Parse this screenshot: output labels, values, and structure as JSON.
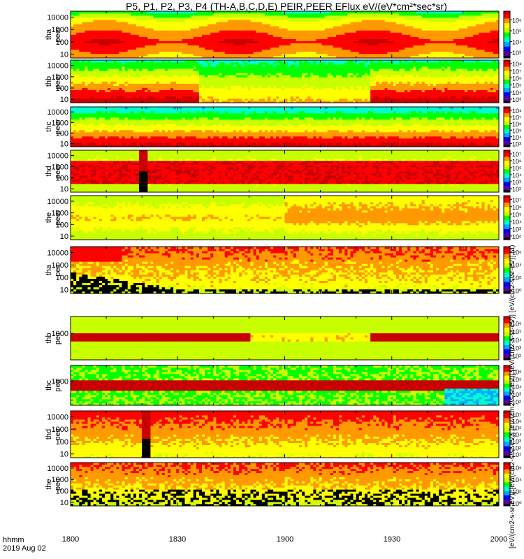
{
  "figure": {
    "title": "P5, P1, P2, P3, P4 (TH-A,B,C,D,E) PEIR,PEER EFlux eV/(eV*cm²*sec*sr)",
    "time_label": "hhmm",
    "date_label": "2019 Aug 02",
    "colorbar_label": "[eV/(cm2-s-sr-eV)] [eV/(cm2-s-sr-eV)] [eV/(cm2-s-sr-eV)] [eV/(cm2-s-sr-eV)] [eV/(cm2-s-sr-eV)] (4)",
    "xticks": [
      "1800",
      "1830",
      "1900",
      "1930",
      "2000"
    ]
  },
  "chart_data": {
    "type": "heatmap",
    "x_range_hhmm": [
      "1800",
      "2000"
    ],
    "y_scale": "log",
    "z_scale": "log",
    "colormap": [
      "#000000",
      "#5a00a0",
      "#0000ff",
      "#00aaff",
      "#00ffd0",
      "#00ff00",
      "#c8ff00",
      "#ffff00",
      "#ff9900",
      "#ff0000",
      "#c80000"
    ],
    "panels": [
      {
        "name": "tha peer",
        "ylabel": [
          "tha",
          "peer"
        ],
        "yticks": [
          "10",
          "100",
          "1000",
          "10000"
        ],
        "ylim": [
          5,
          30000
        ],
        "cbar_ticks": [
          "10⁶",
          "10⁵",
          "10⁴",
          "10³"
        ],
        "cbar_range_exp": [
          2.5,
          6.8
        ]
      },
      {
        "name": "thb peer",
        "ylabel": [
          "thb",
          "peer"
        ],
        "yticks": [
          "10",
          "100",
          "1000",
          "10000"
        ],
        "ylim": [
          5,
          30000
        ],
        "cbar_ticks": [
          "10⁸",
          "10⁷",
          "10⁶",
          "10⁵",
          "10⁴",
          "10³"
        ],
        "cbar_range_exp": [
          2.5,
          8.5
        ]
      },
      {
        "name": "thc peer",
        "ylabel": [
          "thc",
          "peer"
        ],
        "yticks": [
          "10",
          "100",
          "1000",
          "10000"
        ],
        "ylim": [
          5,
          30000
        ],
        "cbar_ticks": [
          "10⁸",
          "10⁷",
          "10⁶",
          "10⁵",
          "10⁴",
          "10³"
        ],
        "cbar_range_exp": [
          2.5,
          8.5
        ]
      },
      {
        "name": "thd peer",
        "ylabel": [
          "thd",
          "peer"
        ],
        "yticks": [
          "10",
          "100",
          "1000",
          "10000"
        ],
        "ylim": [
          5,
          30000
        ],
        "cbar_ticks": [
          "10⁷",
          "10⁶",
          "10⁵",
          "10⁴",
          "10³",
          "10²"
        ],
        "cbar_range_exp": [
          1.5,
          7.5
        ]
      },
      {
        "name": "the peer",
        "ylabel": [
          "the",
          "peer"
        ],
        "yticks": [
          "10",
          "100",
          "1000",
          "10000"
        ],
        "ylim": [
          5,
          30000
        ],
        "cbar_ticks": [
          "10⁷",
          "10⁶",
          "10⁵",
          "10⁴",
          "10³",
          "10²"
        ],
        "cbar_range_exp": [
          1.5,
          7.5
        ]
      },
      {
        "name": "tha peir",
        "ylabel": [
          "tha",
          "peir"
        ],
        "yticks": [
          "10",
          "100",
          "1000",
          "10000"
        ],
        "ylim": [
          5,
          30000
        ],
        "cbar_ticks": [
          "10⁶",
          "10⁴",
          "10²",
          "10⁰"
        ],
        "cbar_range_exp": [
          -0.5,
          6.8
        ]
      },
      {
        "name": "thb peir",
        "ylabel": [
          "thb",
          "peir"
        ],
        "yticks": [
          "1000"
        ],
        "ylim": [
          5,
          30000
        ],
        "cbar_ticks": [
          "10⁶",
          "10⁵",
          "10⁴",
          "10³",
          "10²"
        ],
        "cbar_range_exp": [
          1.5,
          6.8
        ]
      },
      {
        "name": "thc peir",
        "ylabel": [
          "thc",
          "peir"
        ],
        "yticks": [
          "1000"
        ],
        "ylim": [
          5,
          30000
        ],
        "cbar_ticks": [
          "10⁶",
          "10⁵",
          "10⁴",
          "10³",
          "10²"
        ],
        "cbar_range_exp": [
          1.5,
          6.8
        ]
      },
      {
        "name": "thd peir",
        "ylabel": [
          "thd",
          "peir"
        ],
        "yticks": [
          "10",
          "100",
          "1000",
          "10000"
        ],
        "ylim": [
          5,
          30000
        ],
        "cbar_ticks": [
          "10⁷",
          "10⁶",
          "10⁵",
          "10⁴",
          "10³",
          "10²",
          "10¹"
        ],
        "cbar_range_exp": [
          0.5,
          7.5
        ]
      },
      {
        "name": "the peir",
        "ylabel": [
          "the",
          "peir"
        ],
        "yticks": [
          "10",
          "100",
          "1000",
          "10000"
        ],
        "ylim": [
          5,
          30000
        ],
        "cbar_ticks": [
          "10⁶",
          "10⁴",
          "10²",
          "10⁰"
        ],
        "cbar_range_exp": [
          -0.5,
          6.8
        ]
      }
    ]
  }
}
